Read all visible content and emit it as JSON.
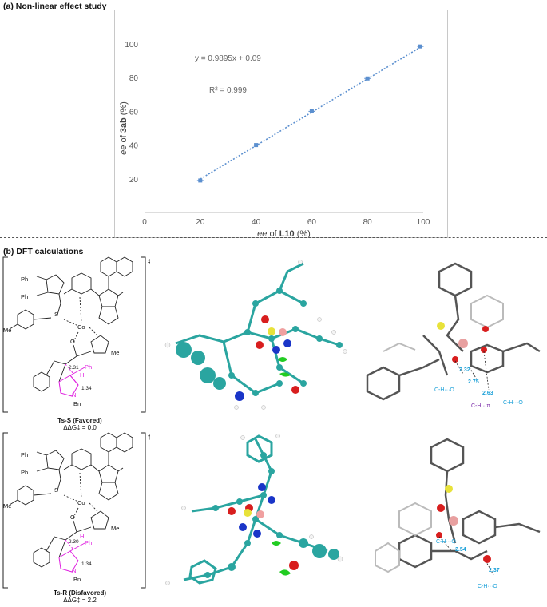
{
  "section_a": {
    "title": "(a) Non-linear effect study"
  },
  "section_b": {
    "title": "(b) DFT calculations"
  },
  "chart_data": {
    "type": "scatter",
    "title": "",
    "xlabel_prefix": "ee",
    "xlabel_rest": " of ",
    "xlabel_bold": "L10",
    "xlabel_suffix": " (%)",
    "ylabel_prefix": "ee",
    "ylabel_rest": " of ",
    "ylabel_bold": "3ab",
    "ylabel_suffix": " (%)",
    "xlim": [
      0,
      100
    ],
    "ylim": [
      0,
      100
    ],
    "xticks": [
      "0",
      "20",
      "40",
      "60",
      "80",
      "100"
    ],
    "yticks": [
      "20",
      "40",
      "60",
      "80",
      "100"
    ],
    "series": [
      {
        "x": [
          20,
          40,
          60,
          80,
          99
        ],
        "y": [
          19,
          40,
          60,
          79.5,
          98.5
        ]
      }
    ],
    "trendline": {
      "slope": 0.9895,
      "intercept": 0.09
    },
    "equation": "y = 0.9895x + 0.09",
    "r_squared": "R² = 0.999",
    "marker_color": "#5b8fcf",
    "line_color": "#5b8fcf",
    "grid": false
  },
  "structures": [
    {
      "caption": "Ts-S (Favored)",
      "energy": "ΔΔG‡ = 0.0",
      "labels": {
        "ph1": "Ph",
        "ph2": "Ph",
        "me1": "Me",
        "me2": "Me",
        "co": "Co",
        "bn": "Bn",
        "ph3": "Ph",
        "d1": "2.31",
        "d2": "1.34",
        "h1": "H",
        "h2": "H",
        "h3": "H",
        "n": "N",
        "o": "O",
        "s": "S"
      },
      "distances": {
        "a": "2.32",
        "b": "2.75",
        "c": "2.63"
      },
      "interactions": {
        "i1": "C-H···O",
        "i2": "C-H···π",
        "i3": "C-H···O"
      }
    },
    {
      "caption": "Ts-R (Disfavored)",
      "energy": "ΔΔG‡ = 2.2",
      "labels": {
        "ph1": "Ph",
        "ph2": "Ph",
        "me1": "Me",
        "me2": "Me",
        "co": "Co",
        "bn": "Bn",
        "ph3": "Ph",
        "d1": "2.30",
        "d2": "1.34",
        "h1": "H",
        "h2": "H",
        "h3": "H",
        "n": "N",
        "o": "O",
        "s": "S"
      },
      "distances": {
        "a": "2.54",
        "b": "2.37"
      },
      "interactions": {
        "i1": "C-H···O",
        "i2": "C-H···O"
      }
    }
  ],
  "dagger": "‡"
}
